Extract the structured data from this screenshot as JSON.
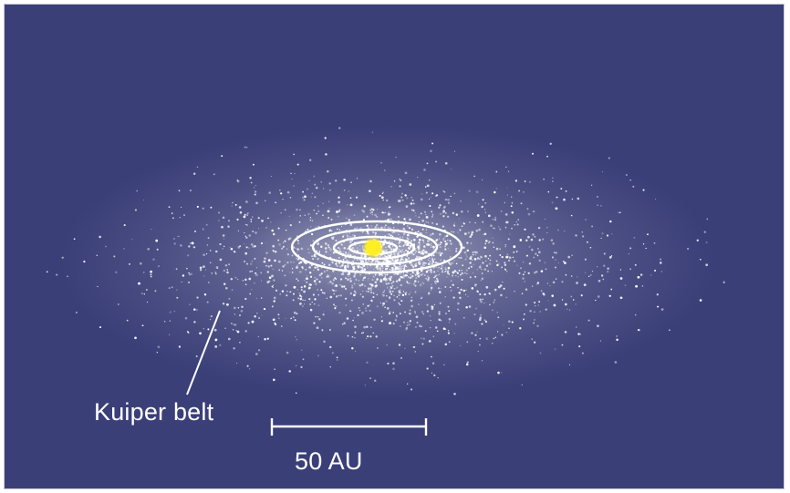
{
  "diagram": {
    "belt_label": "Kuiper belt",
    "scale_label": "50 AU",
    "colors": {
      "background": "#3b3f78",
      "belt": "#ffffff",
      "orbits": "#ffffff",
      "sun": "#ffee22",
      "labels": "#ffffff"
    },
    "orbit_count": 4
  }
}
